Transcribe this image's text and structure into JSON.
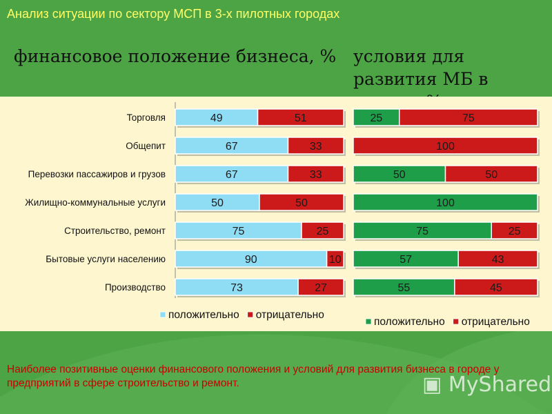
{
  "slide": {
    "title": "Анализ ситуации по сектору МСП в 3-х пилотных городах",
    "heading_left": "финансовое положение бизнеса, %",
    "heading_right": "условия для развития МБ в городе, %",
    "footer": "Наиболее позитивные оценки финансового положения и условий для развития бизнеса в городе у предприятий в сфере строительство и ремонт.",
    "watermark": "MyShared"
  },
  "colors": {
    "background_green": "#4a9e42",
    "chart_panel": "#fdf6cf",
    "positive_left": "#8fdcf5",
    "positive_right": "#1e9e48",
    "negative": "#cc1a1a",
    "title_yellow": "#ffff66",
    "footer_red": "#cc0000"
  },
  "chart_data": [
    {
      "type": "bar",
      "stacked": true,
      "orientation": "horizontal",
      "title": "финансовое положение бизнеса, %",
      "categories": [
        "Торговля",
        "Общепит",
        "Перевозки пассажиров и грузов",
        "Жилищно-коммунальные услуги",
        "Строительство, ремонт",
        "Бытовые услуги населению",
        "Производство"
      ],
      "series": [
        {
          "name": "положительно",
          "color": "#8fdcf5",
          "values": [
            49,
            67,
            67,
            50,
            75,
            90,
            73
          ]
        },
        {
          "name": "отрицательно",
          "color": "#cc1a1a",
          "values": [
            51,
            33,
            33,
            50,
            25,
            10,
            27
          ]
        }
      ],
      "xlim": [
        0,
        100
      ],
      "legend": "bottom"
    },
    {
      "type": "bar",
      "stacked": true,
      "orientation": "horizontal",
      "title": "условия для развития МБ в городе, %",
      "categories": [
        "Торговля",
        "Общепит",
        "Перевозки пассажиров и грузов",
        "Жилищно-коммунальные услуги",
        "Строительство, ремонт",
        "Бытовые услуги населению",
        "Производство"
      ],
      "series": [
        {
          "name": "положительно",
          "color": "#1e9e48",
          "values": [
            25,
            0,
            50,
            100,
            75,
            57,
            55
          ]
        },
        {
          "name": "отрицательно",
          "color": "#cc1a1a",
          "values": [
            75,
            100,
            50,
            0,
            25,
            43,
            45
          ]
        }
      ],
      "xlim": [
        0,
        100
      ],
      "legend": "bottom"
    }
  ]
}
